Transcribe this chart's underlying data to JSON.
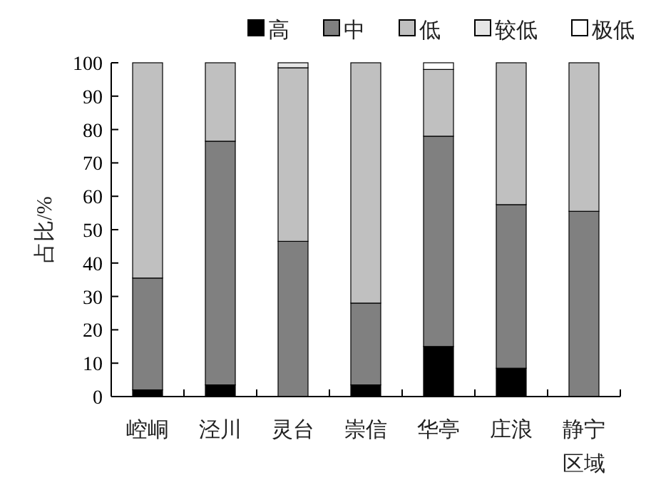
{
  "chart_data": {
    "type": "bar",
    "stacked": true,
    "xlabel": "区域",
    "ylabel": "占比/%",
    "categories": [
      "崆峒",
      "泾川",
      "灵台",
      "崇信",
      "华亭",
      "庄浪",
      "静宁"
    ],
    "series": [
      {
        "name": "高",
        "color": "#000000",
        "values": [
          2,
          3.5,
          0,
          3.5,
          15,
          8.5,
          0
        ]
      },
      {
        "name": "中",
        "color": "#808080",
        "values": [
          33.5,
          73,
          46.5,
          24.5,
          63,
          49,
          55.5
        ]
      },
      {
        "name": "低",
        "color": "#c0c0c0",
        "values": [
          64.5,
          23.5,
          52,
          72,
          20,
          42.5,
          44.5
        ]
      },
      {
        "name": "较低",
        "color": "#e6e6e6",
        "values": [
          0,
          0,
          1.5,
          0,
          0,
          0,
          0
        ]
      },
      {
        "name": "极低",
        "color": "#ffffff",
        "values": [
          0,
          0,
          0,
          0,
          2,
          0,
          0
        ]
      }
    ],
    "ylim": [
      0,
      100
    ],
    "yticks": [
      0,
      10,
      20,
      30,
      40,
      50,
      60,
      70,
      80,
      90,
      100
    ],
    "grid": false,
    "legend": "top right"
  }
}
